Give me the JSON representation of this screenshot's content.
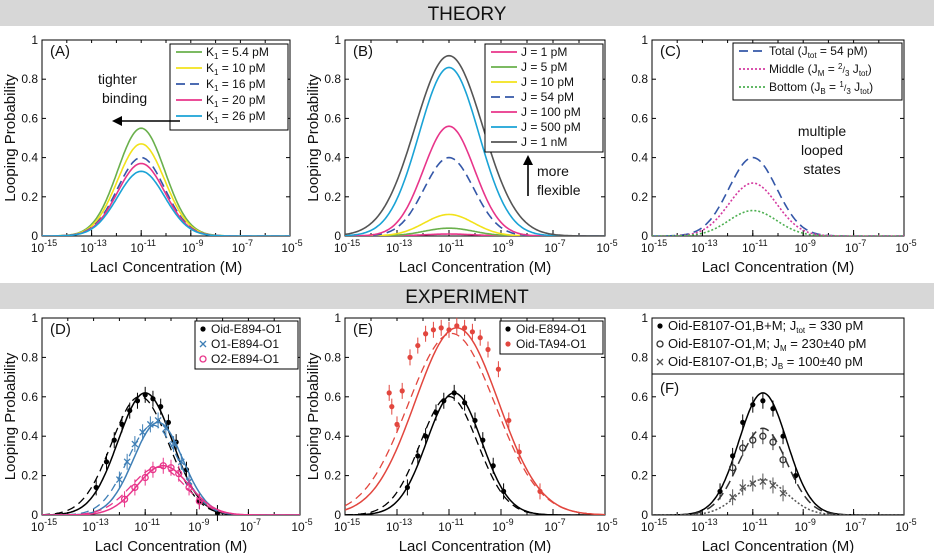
{
  "banners": {
    "theory": "THEORY",
    "experiment": "EXPERIMENT"
  },
  "colors": {
    "banner_bg": "#d7d7d7",
    "green": "#6ab04c",
    "yellow": "#f2e21b",
    "navy": "#3457a8",
    "pink": "#e8358a",
    "cyan": "#1aa3d6",
    "gray": "#555555",
    "black": "#000000",
    "steel": "#3f7fb6",
    "magenta": "#e8358a",
    "red": "#e2463e"
  },
  "chart_data": [
    {
      "id": "A",
      "type": "line",
      "panel_label": "(A)",
      "xlabel": "LacI Concentration (M)",
      "ylabel": "Looping Probability",
      "xlim_exp": [
        -15,
        -5
      ],
      "ylim": [
        0,
        1
      ],
      "x_ticks": [
        -15,
        -13,
        -11,
        -9,
        -7,
        -5
      ],
      "y_ticks": [
        0,
        0.2,
        0.4,
        0.6,
        0.8,
        1
      ],
      "y_tick_labels": [
        "0",
        "0.2",
        "0.4",
        "0.6",
        "0.8",
        "1"
      ],
      "annotation": {
        "lines": [
          "tighter",
          "binding"
        ]
      },
      "legend_position": "top-right",
      "series": [
        {
          "sub": "1",
          "value": " = 5.4 pM",
          "color": "#6ab04c",
          "dash": "solid",
          "peak_log10": -11.0,
          "peak": 0.55,
          "width": 0.95
        },
        {
          "sub": "1",
          "value": " = 10 pM",
          "color": "#f2e21b",
          "dash": "solid",
          "peak_log10": -11.0,
          "peak": 0.47,
          "width": 0.95
        },
        {
          "sub": "1",
          "value": " = 16 pM",
          "color": "#3457a8",
          "dash": "dashed",
          "peak_log10": -11.0,
          "peak": 0.4,
          "width": 0.95
        },
        {
          "sub": "1",
          "value": " = 20 pM",
          "color": "#e8358a",
          "dash": "solid",
          "peak_log10": -11.0,
          "peak": 0.37,
          "width": 0.95
        },
        {
          "sub": "1",
          "value": " = 26 pM",
          "color": "#1aa3d6",
          "dash": "solid",
          "peak_log10": -11.0,
          "peak": 0.33,
          "width": 0.95
        }
      ]
    },
    {
      "id": "B",
      "type": "line",
      "panel_label": "(B)",
      "xlabel": "LacI Concentration (M)",
      "ylabel": "Looping Probability",
      "xlim_exp": [
        -15,
        -5
      ],
      "ylim": [
        0,
        1
      ],
      "x_ticks": [
        -15,
        -13,
        -11,
        -9,
        -7,
        -5
      ],
      "y_ticks": [
        0,
        0.2,
        0.4,
        0.6,
        0.8,
        1
      ],
      "y_tick_labels": [
        "0",
        "0.2",
        "0.4",
        "0.6",
        "0.8",
        "1"
      ],
      "annotation": {
        "lines": [
          "more",
          "flexible"
        ]
      },
      "legend_position": "top-right",
      "series": [
        {
          "label": "J = 1 pM",
          "color": "#e8358a",
          "dash": "solid",
          "peak_log10": -11.0,
          "peak": 0.01,
          "width": 0.95
        },
        {
          "label": "J = 5 pM",
          "color": "#6ab04c",
          "dash": "solid",
          "peak_log10": -11.0,
          "peak": 0.04,
          "width": 0.95
        },
        {
          "label": "J = 10 pM",
          "color": "#f2e21b",
          "dash": "solid",
          "peak_log10": -11.0,
          "peak": 0.11,
          "width": 0.95
        },
        {
          "label": "J = 54 pM",
          "color": "#3457a8",
          "dash": "dashed",
          "peak_log10": -11.0,
          "peak": 0.4,
          "width": 0.95
        },
        {
          "label": "J = 100 pM",
          "color": "#e8358a",
          "dash": "solid",
          "peak_log10": -11.0,
          "peak": 0.56,
          "width": 0.98
        },
        {
          "label": "J = 500 pM",
          "color": "#1aa3d6",
          "dash": "solid",
          "peak_log10": -11.0,
          "peak": 0.86,
          "width": 1.15
        },
        {
          "label": "J = 1 nM",
          "color": "#555555",
          "dash": "solid",
          "peak_log10": -11.0,
          "peak": 0.92,
          "width": 1.3
        }
      ]
    },
    {
      "id": "C",
      "type": "line",
      "panel_label": "(C)",
      "xlabel": "LacI Concentration (M)",
      "ylabel": "",
      "xlim_exp": [
        -15,
        -5
      ],
      "ylim": [
        0,
        1
      ],
      "x_ticks": [
        -15,
        -13,
        -11,
        -9,
        -7,
        -5
      ],
      "y_ticks": [
        0,
        0.2,
        0.4,
        0.6,
        0.8,
        1
      ],
      "y_tick_labels": [
        "0",
        "0.2",
        "0.4",
        "0.6",
        "0.8",
        "1"
      ],
      "annotation": {
        "lines": [
          "multiple",
          "looped",
          "states"
        ]
      },
      "legend_position": "top-right",
      "series": [
        {
          "label": "Total (J",
          "sub": "tot",
          "tail": " = 54 pM)",
          "color": "#3457a8",
          "dash": "dashed",
          "peak_log10": -11.0,
          "peak": 0.4,
          "width": 0.95
        },
        {
          "label": "Middle (J",
          "sub": "M",
          "frac": [
            "2",
            "3"
          ],
          "tail2": "J",
          "tail2sub": "tot",
          "tail3": ")",
          "color": "#d43aa0",
          "dash": "dotted",
          "peak_log10": -11.0,
          "peak": 0.27,
          "width": 0.95
        },
        {
          "label": "Bottom (J",
          "sub": "B",
          "frac": [
            "1",
            "3"
          ],
          "tail2": "J",
          "tail2sub": "tot",
          "tail3": ")",
          "color": "#4caf50",
          "dash": "dotted",
          "peak_log10": -11.0,
          "peak": 0.13,
          "width": 0.95
        }
      ]
    },
    {
      "id": "D",
      "type": "scatter",
      "panel_label": "(D)",
      "xlabel": "LacI Concentration (M)",
      "ylabel": "Looping Probability",
      "xlim_exp": [
        -15,
        -5
      ],
      "ylim": [
        0,
        1
      ],
      "x_ticks": [
        -15,
        -13,
        -11,
        -9,
        -7,
        -5
      ],
      "y_ticks": [
        0,
        0.2,
        0.4,
        0.6,
        0.8,
        1
      ],
      "y_tick_labels": [
        "0",
        "0.2",
        "0.4",
        "0.6",
        "0.8",
        "1"
      ],
      "legend_position": "top-right",
      "series": [
        {
          "label": "Oid-E894-O1",
          "color": "#000000",
          "marker": "dot",
          "peak_log10": -11.0,
          "peak": 0.62,
          "width": 1.05,
          "points": [
            [
              -12.9,
              0.14
            ],
            [
              -12.5,
              0.27
            ],
            [
              -12.2,
              0.38
            ],
            [
              -11.9,
              0.46
            ],
            [
              -11.6,
              0.53
            ],
            [
              -11.3,
              0.58
            ],
            [
              -11.0,
              0.61
            ],
            [
              -10.7,
              0.59
            ],
            [
              -10.4,
              0.55
            ],
            [
              -10.1,
              0.47
            ],
            [
              -9.8,
              0.37
            ],
            [
              -9.4,
              0.23
            ],
            [
              -8.9,
              0.07
            ],
            [
              -8.2,
              0.01
            ]
          ]
        },
        {
          "label": "O1-E894-O1",
          "color": "#3f7fb6",
          "marker": "x",
          "peak_log10": -10.5,
          "peak": 0.47,
          "width": 0.95,
          "points": [
            [
              -12.0,
              0.18
            ],
            [
              -11.7,
              0.27
            ],
            [
              -11.4,
              0.36
            ],
            [
              -11.1,
              0.42
            ],
            [
              -10.8,
              0.46
            ],
            [
              -10.5,
              0.48
            ],
            [
              -10.2,
              0.44
            ],
            [
              -9.9,
              0.36
            ],
            [
              -9.6,
              0.27
            ],
            [
              -9.3,
              0.17
            ]
          ]
        },
        {
          "label": "O2-E894-O1",
          "color": "#e8358a",
          "marker": "circle",
          "peak_log10": -10.3,
          "peak": 0.25,
          "width": 1.0,
          "points": [
            [
              -11.8,
              0.08
            ],
            [
              -11.4,
              0.14
            ],
            [
              -11.0,
              0.19
            ],
            [
              -10.7,
              0.23
            ],
            [
              -10.3,
              0.25
            ],
            [
              -10.0,
              0.24
            ],
            [
              -9.7,
              0.21
            ],
            [
              -9.3,
              0.14
            ],
            [
              -8.9,
              0.07
            ]
          ]
        }
      ]
    },
    {
      "id": "E",
      "type": "scatter",
      "panel_label": "(E)",
      "xlabel": "LacI Concentration (M)",
      "ylabel": "Looping Probability",
      "xlim_exp": [
        -15,
        -5
      ],
      "ylim": [
        0,
        1
      ],
      "x_ticks": [
        -15,
        -13,
        -11,
        -9,
        -7,
        -5
      ],
      "y_ticks": [
        0,
        0.2,
        0.4,
        0.6,
        0.8,
        1
      ],
      "y_tick_labels": [
        "0",
        "0.2",
        "0.4",
        "0.6",
        "0.8",
        "1"
      ],
      "legend_position": "top-right",
      "series": [
        {
          "label": "Oid-E894-O1",
          "color": "#000000",
          "marker": "dot",
          "peak_log10": -10.8,
          "peak": 0.62,
          "width": 1.05,
          "points": [
            [
              -12.6,
              0.14
            ],
            [
              -12.2,
              0.3
            ],
            [
              -11.9,
              0.4
            ],
            [
              -11.5,
              0.52
            ],
            [
              -11.2,
              0.58
            ],
            [
              -10.8,
              0.62
            ],
            [
              -10.4,
              0.57
            ],
            [
              -10.0,
              0.48
            ],
            [
              -9.7,
              0.38
            ],
            [
              -9.3,
              0.25
            ],
            [
              -8.9,
              0.12
            ]
          ]
        },
        {
          "label": "Oid-TA94-O1",
          "color": "#e2463e",
          "marker": "dot",
          "peak_log10": -10.7,
          "peak": 0.95,
          "width": 1.6,
          "points": [
            [
              -13.3,
              0.62
            ],
            [
              -13.2,
              0.55
            ],
            [
              -13.0,
              0.46
            ],
            [
              -12.8,
              0.63
            ],
            [
              -12.5,
              0.8
            ],
            [
              -12.2,
              0.86
            ],
            [
              -11.9,
              0.92
            ],
            [
              -11.6,
              0.94
            ],
            [
              -11.3,
              0.95
            ],
            [
              -11.0,
              0.94
            ],
            [
              -10.7,
              0.96
            ],
            [
              -10.4,
              0.95
            ],
            [
              -10.1,
              0.93
            ],
            [
              -9.8,
              0.9
            ],
            [
              -9.5,
              0.84
            ],
            [
              -9.1,
              0.74
            ],
            [
              -8.7,
              0.48
            ],
            [
              -8.3,
              0.32
            ],
            [
              -7.5,
              0.12
            ]
          ]
        }
      ]
    },
    {
      "id": "F",
      "type": "scatter",
      "panel_label": "(F)",
      "xlabel": "LacI Concentration (M)",
      "ylabel": "",
      "xlim_exp": [
        -15,
        -5
      ],
      "ylim": [
        0,
        1
      ],
      "x_ticks": [
        -15,
        -13,
        -11,
        -9,
        -7,
        -5
      ],
      "y_ticks": [
        0,
        0.2,
        0.4,
        0.6,
        0.8,
        1
      ],
      "y_tick_labels": [
        "0",
        "0.2",
        "0.4",
        "0.6",
        "0.8",
        "1"
      ],
      "legend_position": "top",
      "series": [
        {
          "label": "Oid-E8107-O1,B+M; J",
          "sub": "tot",
          "tail": " = 330 pM",
          "color": "#000000",
          "marker": "dot",
          "dash": "solid",
          "peak_log10": -10.6,
          "peak": 0.62,
          "width": 0.95,
          "points": [
            [
              -12.3,
              0.12
            ],
            [
              -11.8,
              0.3
            ],
            [
              -11.4,
              0.47
            ],
            [
              -11.0,
              0.56
            ],
            [
              -10.6,
              0.58
            ],
            [
              -10.2,
              0.54
            ],
            [
              -9.8,
              0.4
            ],
            [
              -9.3,
              0.2
            ]
          ]
        },
        {
          "label": "Oid-E8107-O1,M; J",
          "sub": "M",
          "tail": " = 230±40 pM",
          "color": "#333333",
          "marker": "circle",
          "dash": "dashed",
          "peak_log10": -10.6,
          "peak": 0.44,
          "width": 0.95,
          "points": [
            [
              -11.8,
              0.24
            ],
            [
              -11.4,
              0.34
            ],
            [
              -11.0,
              0.38
            ],
            [
              -10.6,
              0.4
            ],
            [
              -10.2,
              0.37
            ],
            [
              -9.8,
              0.28
            ]
          ]
        },
        {
          "label": "Oid-E8107-O1,B; J",
          "sub": "B",
          "tail": " = 100±40 pM",
          "color": "#555555",
          "marker": "x",
          "dash": "dotted",
          "peak_log10": -10.6,
          "peak": 0.18,
          "width": 0.95,
          "points": [
            [
              -11.8,
              0.09
            ],
            [
              -11.4,
              0.14
            ],
            [
              -11.0,
              0.16
            ],
            [
              -10.6,
              0.17
            ],
            [
              -10.2,
              0.15
            ],
            [
              -9.8,
              0.11
            ]
          ]
        }
      ]
    }
  ]
}
